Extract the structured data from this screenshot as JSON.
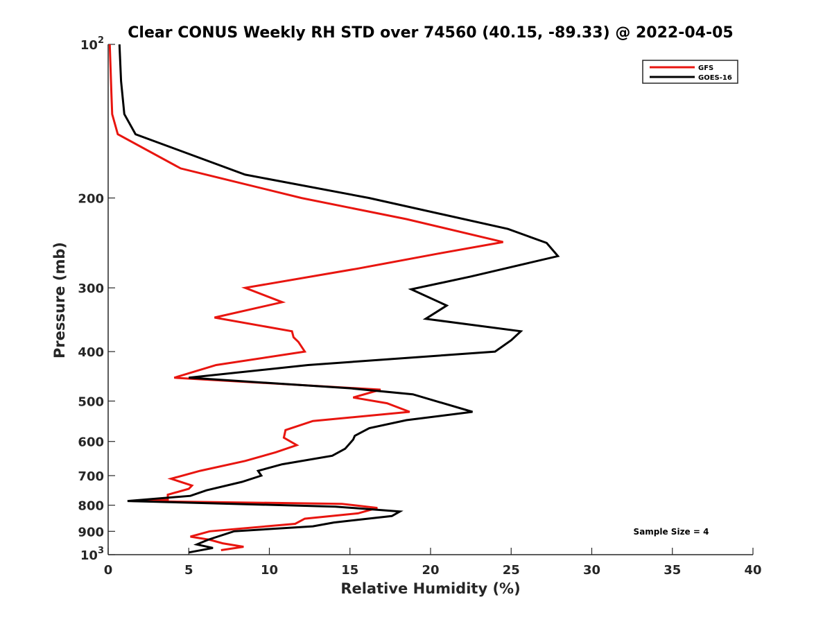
{
  "chart_data": {
    "type": "line",
    "title": "Clear CONUS Weekly RH STD over 74560 (40.15, -89.33) @ 2022-04-05",
    "xlabel": "Relative Humidity (%)",
    "ylabel": "Pressure (mb)",
    "xlim": [
      0,
      40
    ],
    "ylim": [
      100,
      1000
    ],
    "y_scale": "log",
    "y_reversed": true,
    "grid": false,
    "legend_position": "top-right",
    "annotation": "Sample Size = 4",
    "x_ticks": [
      {
        "value": 0,
        "label": "0"
      },
      {
        "value": 5,
        "label": "5"
      },
      {
        "value": 10,
        "label": "10"
      },
      {
        "value": 15,
        "label": "15"
      },
      {
        "value": 20,
        "label": "20"
      },
      {
        "value": 25,
        "label": "25"
      },
      {
        "value": 30,
        "label": "30"
      },
      {
        "value": 35,
        "label": "35"
      },
      {
        "value": 40,
        "label": "40"
      }
    ],
    "y_ticks": [
      {
        "value": 100,
        "base": "10",
        "exp": "2"
      },
      {
        "value": 200,
        "label": "200"
      },
      {
        "value": 300,
        "label": "300"
      },
      {
        "value": 400,
        "label": "400"
      },
      {
        "value": 500,
        "label": "500"
      },
      {
        "value": 600,
        "label": "600"
      },
      {
        "value": 700,
        "label": "700"
      },
      {
        "value": 800,
        "label": "800"
      },
      {
        "value": 900,
        "label": "900"
      },
      {
        "value": 1000,
        "base": "10",
        "exp": "3"
      }
    ],
    "series": [
      {
        "name": "GFS",
        "color": "#e8150f",
        "points": [
          [
            0.1,
            100
          ],
          [
            0.2,
            125
          ],
          [
            0.25,
            137
          ],
          [
            0.6,
            150
          ],
          [
            4.5,
            175
          ],
          [
            12.0,
            200
          ],
          [
            18.5,
            220
          ],
          [
            24.5,
            244
          ],
          [
            20.5,
            257
          ],
          [
            15.5,
            275
          ],
          [
            8.5,
            300
          ],
          [
            10.8,
            320
          ],
          [
            6.6,
            343
          ],
          [
            11.4,
            365
          ],
          [
            11.5,
            375
          ],
          [
            11.8,
            383
          ],
          [
            12.2,
            400
          ],
          [
            6.7,
            425
          ],
          [
            4.1,
            450
          ],
          [
            16.9,
            475
          ],
          [
            15.2,
            492
          ],
          [
            17.3,
            505
          ],
          [
            18.7,
            525
          ],
          [
            12.7,
            547
          ],
          [
            11.0,
            570
          ],
          [
            10.9,
            590
          ],
          [
            11.7,
            610
          ],
          [
            10.4,
            630
          ],
          [
            8.5,
            655
          ],
          [
            5.7,
            685
          ],
          [
            3.9,
            710
          ],
          [
            5.2,
            732
          ],
          [
            5.0,
            743
          ],
          [
            3.7,
            763
          ],
          [
            3.7,
            781
          ],
          [
            1.5,
            785
          ],
          [
            14.5,
            795
          ],
          [
            16.7,
            810
          ],
          [
            15.5,
            830
          ],
          [
            12.2,
            850
          ],
          [
            11.6,
            870
          ],
          [
            6.3,
            900
          ],
          [
            5.1,
            922
          ],
          [
            6.3,
            935
          ],
          [
            7.1,
            950
          ],
          [
            8.4,
            965
          ],
          [
            7.0,
            980
          ]
        ]
      },
      {
        "name": "GOES-16",
        "color": "#000000",
        "points": [
          [
            0.7,
            100
          ],
          [
            0.8,
            118
          ],
          [
            1.0,
            137
          ],
          [
            1.7,
            150
          ],
          [
            8.5,
            180
          ],
          [
            16.2,
            200
          ],
          [
            24.8,
            230
          ],
          [
            27.2,
            245
          ],
          [
            27.9,
            260
          ],
          [
            22.5,
            285
          ],
          [
            18.8,
            302
          ],
          [
            21.0,
            325
          ],
          [
            19.7,
            345
          ],
          [
            25.6,
            365
          ],
          [
            25.0,
            380
          ],
          [
            24.0,
            400
          ],
          [
            12.4,
            425
          ],
          [
            5.0,
            450
          ],
          [
            15.0,
            472
          ],
          [
            18.9,
            485
          ],
          [
            22.6,
            525
          ],
          [
            18.5,
            545
          ],
          [
            16.2,
            565
          ],
          [
            15.3,
            585
          ],
          [
            15.2,
            595
          ],
          [
            14.7,
            620
          ],
          [
            13.9,
            640
          ],
          [
            10.8,
            665
          ],
          [
            9.3,
            685
          ],
          [
            9.5,
            700
          ],
          [
            8.3,
            720
          ],
          [
            6.1,
            748
          ],
          [
            5.1,
            767
          ],
          [
            1.2,
            785
          ],
          [
            14.1,
            805
          ],
          [
            18.1,
            823
          ],
          [
            17.6,
            840
          ],
          [
            14.0,
            865
          ],
          [
            12.7,
            880
          ],
          [
            7.8,
            900
          ],
          [
            6.2,
            935
          ],
          [
            5.5,
            955
          ],
          [
            6.5,
            970
          ],
          [
            5.0,
            990
          ]
        ]
      }
    ]
  }
}
